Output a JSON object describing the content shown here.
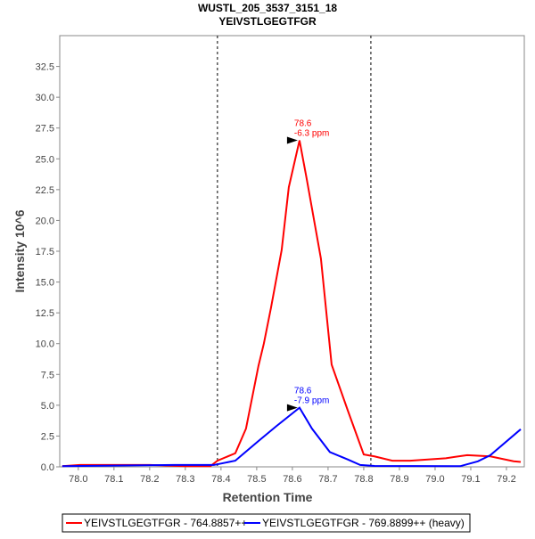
{
  "chart_data": {
    "type": "line",
    "title": "WUSTL_205_3537_3151_18",
    "subtitle": "YEIVSTLGEGTFGR",
    "xlabel": "Retention Time",
    "ylabel": "Intensity 10^6",
    "xlim": [
      77.948,
      79.25
    ],
    "ylim": [
      0,
      35
    ],
    "xticks": [
      "78.0",
      "78.1",
      "78.2",
      "78.3",
      "78.4",
      "78.5",
      "78.6",
      "78.7",
      "78.8",
      "78.9",
      "79.0",
      "79.1",
      "79.2"
    ],
    "yticks": [
      "0.0",
      "2.5",
      "5.0",
      "7.5",
      "10.0",
      "12.5",
      "15.0",
      "17.5",
      "20.0",
      "22.5",
      "25.0",
      "27.5",
      "30.0",
      "32.5"
    ],
    "grid": false,
    "boundaries": [
      78.39,
      78.82
    ],
    "legend_position": "bottom",
    "series": [
      {
        "name": "YEIVSTLGEGTFGR - 764.8857++",
        "color": "#ff0000",
        "x": [
          77.955,
          78.005,
          78.2,
          78.3,
          78.37,
          78.39,
          78.44,
          78.47,
          78.505,
          78.52,
          78.54,
          78.57,
          78.59,
          78.62,
          78.64,
          78.68,
          78.71,
          78.755,
          78.8,
          78.83,
          78.88,
          78.93,
          79.03,
          79.09,
          79.155,
          79.22,
          79.24
        ],
        "y": [
          0.05,
          0.15,
          0.15,
          0.05,
          0.05,
          0.5,
          1.1,
          3.1,
          8.2,
          10.0,
          12.9,
          17.6,
          22.7,
          26.5,
          23.4,
          16.9,
          8.3,
          4.6,
          1.0,
          0.85,
          0.5,
          0.5,
          0.7,
          0.95,
          0.85,
          0.45,
          0.4
        ],
        "annotation": {
          "x": 78.62,
          "y": 26.5,
          "line1": "78.6",
          "line2": "-6.3 ppm"
        }
      },
      {
        "name": "YEIVSTLGEGTFGR - 769.8899++ (heavy)",
        "color": "#0000ff",
        "x": [
          77.955,
          78.27,
          78.36,
          78.38,
          78.44,
          78.505,
          78.555,
          78.62,
          78.655,
          78.705,
          78.755,
          78.79,
          78.83,
          79.07,
          79.12,
          79.155,
          79.24
        ],
        "y": [
          0.05,
          0.15,
          0.15,
          0.15,
          0.5,
          2.1,
          3.3,
          4.8,
          3.1,
          1.2,
          0.6,
          0.15,
          0.07,
          0.05,
          0.45,
          0.95,
          3.05
        ],
        "annotation": {
          "x": 78.62,
          "y": 4.8,
          "line1": "78.6",
          "line2": "-7.9 ppm"
        }
      }
    ]
  }
}
